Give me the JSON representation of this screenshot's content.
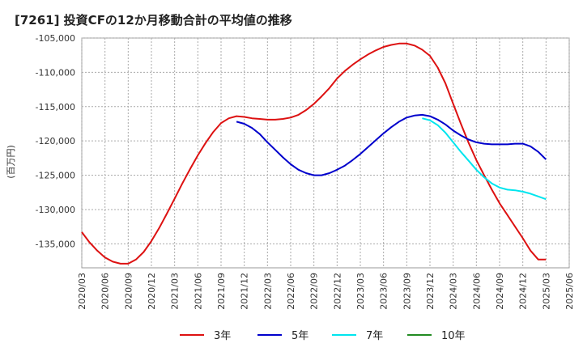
{
  "title": "[7261]  投資CFの12か月移動合計の平均値の推移",
  "chart_data": {
    "type": "line",
    "title": "[7261]  投資CFの12か月移動合計の平均値の推移",
    "ylabel": "(百万円)",
    "xlabel": "",
    "ylim": [
      -138500,
      -105000
    ],
    "yticks": [
      -105000,
      -110000,
      -115000,
      -120000,
      -125000,
      -130000,
      -135000
    ],
    "ytick_labels": [
      "-105,000",
      "-110,000",
      "-115,000",
      "-120,000",
      "-125,000",
      "-130,000",
      "-135,000"
    ],
    "xlim": [
      "2020-03",
      "2025-06"
    ],
    "xticks": [
      "2020/03",
      "2020/06",
      "2020/09",
      "2020/12",
      "2021/03",
      "2021/06",
      "2021/09",
      "2021/12",
      "2022/03",
      "2022/06",
      "2022/09",
      "2022/12",
      "2023/03",
      "2023/06",
      "2023/09",
      "2023/12",
      "2024/03",
      "2024/06",
      "2024/09",
      "2024/12",
      "2025/03",
      "2025/06"
    ],
    "grid": true,
    "legend_position": "bottom",
    "series": [
      {
        "name": "3年",
        "color": "#dd1111",
        "x": [
          "2020-03",
          "2020-04",
          "2020-05",
          "2020-06",
          "2020-07",
          "2020-08",
          "2020-09",
          "2020-10",
          "2020-11",
          "2020-12",
          "2021-01",
          "2021-02",
          "2021-03",
          "2021-04",
          "2021-05",
          "2021-06",
          "2021-07",
          "2021-08",
          "2021-09",
          "2021-10",
          "2021-11",
          "2021-12",
          "2022-01",
          "2022-02",
          "2022-03",
          "2022-04",
          "2022-05",
          "2022-06",
          "2022-07",
          "2022-08",
          "2022-09",
          "2022-10",
          "2022-11",
          "2022-12",
          "2023-01",
          "2023-02",
          "2023-03",
          "2023-04",
          "2023-05",
          "2023-06",
          "2023-07",
          "2023-08",
          "2023-09",
          "2023-10",
          "2023-11",
          "2023-12",
          "2024-01",
          "2024-02",
          "2024-03",
          "2024-04",
          "2024-05",
          "2024-06",
          "2024-07",
          "2024-08",
          "2024-09",
          "2024-10",
          "2024-11",
          "2024-12",
          "2025-01",
          "2025-02",
          "2025-03"
        ],
        "y": [
          -133300,
          -134800,
          -136000,
          -137000,
          -137600,
          -137900,
          -137900,
          -137300,
          -136200,
          -134600,
          -132700,
          -130600,
          -128400,
          -126200,
          -124100,
          -122100,
          -120300,
          -118700,
          -117400,
          -116700,
          -116400,
          -116500,
          -116700,
          -116800,
          -116900,
          -116900,
          -116800,
          -116600,
          -116200,
          -115500,
          -114600,
          -113500,
          -112300,
          -110900,
          -109800,
          -108900,
          -108100,
          -107400,
          -106800,
          -106300,
          -106000,
          -105800,
          -105800,
          -106100,
          -106700,
          -107600,
          -109300,
          -111600,
          -114600,
          -117500,
          -120300,
          -122800,
          -125000,
          -127100,
          -129100,
          -130800,
          -132500,
          -134200,
          -136000,
          -137300,
          -137300
        ]
      },
      {
        "name": "5年",
        "color": "#0000cc",
        "x": [
          "2021-11",
          "2021-12",
          "2022-01",
          "2022-02",
          "2022-03",
          "2022-04",
          "2022-05",
          "2022-06",
          "2022-07",
          "2022-08",
          "2022-09",
          "2022-10",
          "2022-11",
          "2022-12",
          "2023-01",
          "2023-02",
          "2023-03",
          "2023-04",
          "2023-05",
          "2023-06",
          "2023-07",
          "2023-08",
          "2023-09",
          "2023-10",
          "2023-11",
          "2023-12",
          "2024-01",
          "2024-02",
          "2024-03",
          "2024-04",
          "2024-05",
          "2024-06",
          "2024-07",
          "2024-08",
          "2024-09",
          "2024-10",
          "2024-11",
          "2024-12",
          "2025-01",
          "2025-02",
          "2025-03"
        ],
        "y": [
          -117200,
          -117500,
          -118100,
          -119000,
          -120200,
          -121300,
          -122400,
          -123400,
          -124200,
          -124700,
          -125000,
          -125000,
          -124700,
          -124200,
          -123600,
          -122800,
          -121900,
          -120900,
          -119900,
          -118900,
          -118000,
          -117200,
          -116600,
          -116300,
          -116200,
          -116400,
          -116900,
          -117600,
          -118500,
          -119200,
          -119800,
          -120200,
          -120400,
          -120500,
          -120500,
          -120500,
          -120400,
          -120400,
          -120800,
          -121600,
          -122700
        ]
      },
      {
        "name": "7年",
        "color": "#00e5ee",
        "x": [
          "2023-11",
          "2023-12",
          "2024-01",
          "2024-02",
          "2024-03",
          "2024-04",
          "2024-05",
          "2024-06",
          "2024-07",
          "2024-08",
          "2024-09",
          "2024-10",
          "2024-11",
          "2024-12",
          "2025-01",
          "2025-02",
          "2025-03"
        ],
        "y": [
          -116700,
          -117000,
          -117700,
          -118800,
          -120200,
          -121600,
          -122900,
          -124200,
          -125300,
          -126200,
          -126800,
          -127100,
          -127200,
          -127400,
          -127700,
          -128100,
          -128500
        ]
      },
      {
        "name": "10年",
        "color": "#228b22",
        "x": [],
        "y": []
      }
    ]
  }
}
